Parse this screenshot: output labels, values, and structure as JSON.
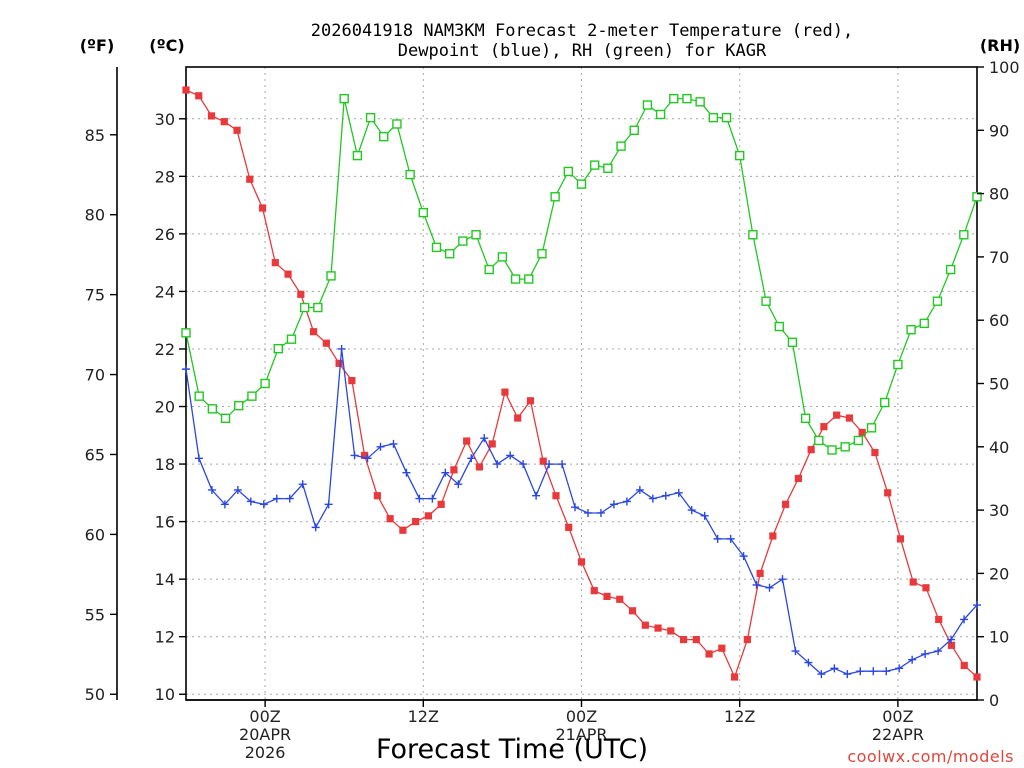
{
  "chart_data": {
    "type": "line",
    "title_line1": "2026041918 NAM3KM Forecast 2-meter Temperature (red),",
    "title_line2": "Dewpoint (blue), RH (green) for KAGR",
    "axis_units": {
      "fahrenheit": "(ºF)",
      "celsius": "(ºC)",
      "rh": "(RH)"
    },
    "xlabel": "Forecast Time (UTC)",
    "credit": "coolwx.com/models",
    "x_range_hours": [
      0,
      60
    ],
    "celsius_range": [
      9.8,
      31.8
    ],
    "rh_range": [
      0,
      100
    ],
    "celsius_ticks": [
      10,
      12,
      14,
      16,
      18,
      20,
      22,
      24,
      26,
      28,
      30
    ],
    "fahrenheit_ticks": [
      50,
      55,
      60,
      65,
      70,
      75,
      80,
      85
    ],
    "rh_ticks": [
      0,
      10,
      20,
      30,
      40,
      50,
      60,
      70,
      80,
      90,
      100
    ],
    "x_ticks": [
      {
        "hour": 6,
        "label1": "00Z",
        "label2": "20APR",
        "label3": "2026"
      },
      {
        "hour": 18,
        "label1": "12Z",
        "label2": "",
        "label3": ""
      },
      {
        "hour": 30,
        "label1": "00Z",
        "label2": "21APR",
        "label3": ""
      },
      {
        "hour": 42,
        "label1": "12Z",
        "label2": "",
        "label3": ""
      },
      {
        "hour": 54,
        "label1": "00Z",
        "label2": "22APR",
        "label3": ""
      }
    ],
    "series": [
      {
        "name": "Temperature",
        "units": "C",
        "color": "#e8393c",
        "marker": "filled-square",
        "values": [
          31.0,
          30.8,
          30.1,
          29.9,
          29.6,
          27.9,
          26.9,
          25.0,
          24.6,
          23.9,
          22.6,
          22.2,
          21.5,
          20.9,
          18.3,
          16.9,
          16.1,
          15.7,
          16.0,
          16.2,
          16.6,
          17.8,
          18.8,
          17.9,
          18.7,
          20.5,
          19.6,
          20.2,
          18.1,
          16.9,
          15.8,
          14.6,
          13.6,
          13.4,
          13.3,
          12.9,
          12.4,
          12.3,
          12.2,
          11.9,
          11.9,
          11.4,
          11.6,
          10.6,
          11.9,
          14.2,
          15.5,
          16.6,
          17.5,
          18.5,
          19.3,
          19.7,
          19.6,
          19.1,
          18.4,
          17.0,
          15.4,
          13.9,
          13.7,
          12.6,
          11.7,
          11.0,
          10.6
        ],
        "values_f": [
          87.8,
          87.4,
          86.2,
          85.8,
          85.3,
          82.2,
          80.4,
          77.0,
          76.3,
          75.0,
          72.7,
          72.0,
          70.7,
          69.6,
          64.9,
          62.4,
          61.0,
          60.3,
          60.8,
          61.2,
          61.9,
          64.0,
          65.8,
          64.2,
          65.7,
          68.9,
          67.3,
          68.4,
          64.6,
          62.4,
          60.4,
          58.3,
          56.5,
          56.1,
          55.9,
          55.2,
          54.3,
          54.1,
          54.0,
          53.4,
          53.4,
          52.5,
          52.9,
          51.1,
          53.4,
          57.6,
          59.9,
          61.9,
          63.5,
          65.3,
          66.7,
          67.5,
          67.3,
          66.4,
          65.1,
          62.6,
          59.7,
          57.0,
          56.7,
          54.7,
          53.1,
          51.8,
          51.1
        ]
      },
      {
        "name": "Dewpoint",
        "units": "C",
        "color": "#2a48e0",
        "marker": "plus",
        "values": [
          21.3,
          18.2,
          17.1,
          16.6,
          17.1,
          16.7,
          16.6,
          16.8,
          16.8,
          17.3,
          15.8,
          16.6,
          22.0,
          18.3,
          18.2,
          18.6,
          18.7,
          17.7,
          16.8,
          16.8,
          17.7,
          17.3,
          18.2,
          18.9,
          18.0,
          18.3,
          18.0,
          16.9,
          18.0,
          18.0,
          16.5,
          16.3,
          16.3,
          16.6,
          16.7,
          17.1,
          16.8,
          16.9,
          17.0,
          16.4,
          16.2,
          15.4,
          15.4,
          14.8,
          13.8,
          13.7,
          14.0,
          11.5,
          11.1,
          10.7,
          10.9,
          10.7,
          10.8,
          10.8,
          10.8,
          10.9,
          11.2,
          11.4,
          11.5,
          11.9,
          12.6,
          13.1
        ],
        "values_f": [
          70.3,
          64.8,
          62.8,
          61.9,
          62.8,
          62.1,
          61.9,
          62.2,
          62.2,
          63.1,
          60.4,
          61.9,
          71.6,
          64.9,
          64.8,
          65.5,
          65.7,
          63.9,
          62.2,
          62.2,
          63.9,
          63.1,
          64.8,
          66.0,
          64.4,
          64.9,
          64.4,
          62.4,
          64.4,
          64.4,
          61.7,
          61.3,
          61.3,
          61.9,
          62.1,
          62.8,
          62.2,
          62.4,
          62.6,
          61.5,
          61.2,
          59.7,
          59.7,
          58.6,
          56.8,
          56.7,
          57.2,
          52.7,
          52.0,
          51.3,
          51.6,
          51.3,
          51.4,
          51.4,
          51.4,
          51.6,
          52.2,
          52.5,
          52.7,
          53.4,
          54.7,
          55.6
        ]
      },
      {
        "name": "RH",
        "units": "%",
        "color": "#22c822",
        "marker": "open-square",
        "values": [
          58,
          48,
          46,
          44.5,
          46.5,
          48,
          50,
          55.5,
          57,
          62,
          62,
          67,
          95,
          86,
          92,
          89,
          91,
          83,
          77,
          71.5,
          70.5,
          72.5,
          73.5,
          68,
          70,
          66.5,
          66.5,
          70.5,
          79.5,
          83.5,
          81.5,
          84.5,
          84,
          87.5,
          90,
          94,
          92.5,
          95,
          95,
          94.5,
          92,
          92,
          86,
          73.5,
          63,
          59,
          56.5,
          44.5,
          41,
          39.5,
          40,
          41,
          43,
          47,
          53,
          58.5,
          59.5,
          63,
          68,
          73.5,
          79.5
        ]
      }
    ]
  }
}
